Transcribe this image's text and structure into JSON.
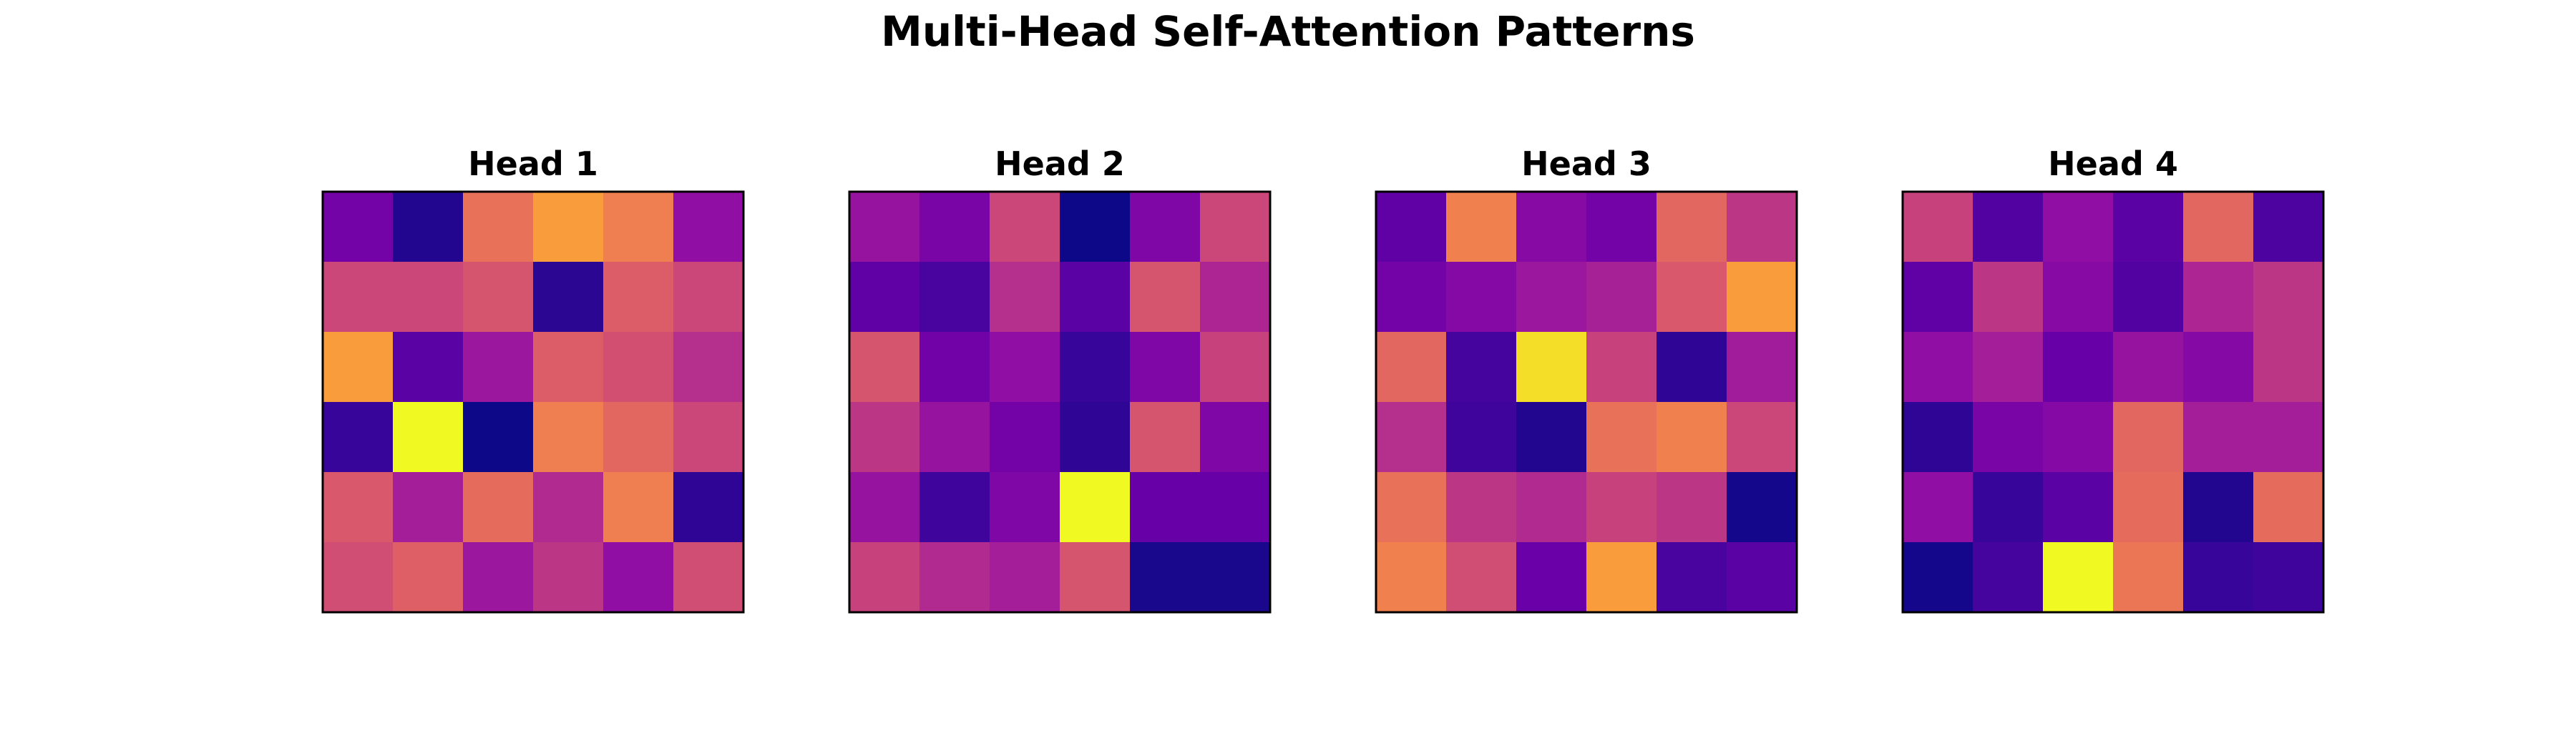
{
  "figure": {
    "title": "Multi-Head Self-Attention Patterns"
  },
  "chart_data": [
    {
      "type": "heatmap",
      "title": "Head 1",
      "colormap": "plasma",
      "value_range": [
        0,
        1
      ],
      "axes_visible": false,
      "values": [
        [
          0.28,
          0.05,
          0.8,
          0.92,
          0.85,
          0.38
        ],
        [
          0.62,
          0.62,
          0.68,
          0.07,
          0.72,
          0.62
        ],
        [
          0.92,
          0.2,
          0.42,
          0.72,
          0.66,
          0.52
        ],
        [
          0.1,
          1.0,
          0.0,
          0.85,
          0.76,
          0.62
        ],
        [
          0.7,
          0.45,
          0.78,
          0.5,
          0.85,
          0.08
        ],
        [
          0.65,
          0.73,
          0.42,
          0.55,
          0.38,
          0.65
        ]
      ]
    },
    {
      "type": "heatmap",
      "title": "Head 2",
      "colormap": "plasma",
      "value_range": [
        0,
        1
      ],
      "axes_visible": false,
      "values": [
        [
          0.4,
          0.3,
          0.62,
          0.0,
          0.32,
          0.62
        ],
        [
          0.22,
          0.15,
          0.52,
          0.2,
          0.68,
          0.48
        ],
        [
          0.68,
          0.27,
          0.38,
          0.1,
          0.32,
          0.6
        ],
        [
          0.55,
          0.4,
          0.28,
          0.08,
          0.68,
          0.32
        ],
        [
          0.4,
          0.12,
          0.32,
          1.0,
          0.24,
          0.24
        ],
        [
          0.6,
          0.5,
          0.45,
          0.68,
          0.03,
          0.03
        ]
      ]
    },
    {
      "type": "heatmap",
      "title": "Head 3",
      "colormap": "plasma",
      "value_range": [
        0,
        1
      ],
      "axes_visible": false,
      "values": [
        [
          0.22,
          0.86,
          0.35,
          0.28,
          0.76,
          0.55
        ],
        [
          0.28,
          0.34,
          0.42,
          0.46,
          0.7,
          0.92
        ],
        [
          0.76,
          0.14,
          0.98,
          0.6,
          0.08,
          0.44
        ],
        [
          0.52,
          0.12,
          0.05,
          0.8,
          0.86,
          0.62
        ],
        [
          0.8,
          0.55,
          0.5,
          0.6,
          0.55,
          0.02
        ],
        [
          0.86,
          0.65,
          0.25,
          0.92,
          0.15,
          0.2
        ]
      ]
    },
    {
      "type": "heatmap",
      "title": "Head 4",
      "colormap": "plasma",
      "value_range": [
        0,
        1
      ],
      "axes_visible": false,
      "values": [
        [
          0.6,
          0.18,
          0.38,
          0.2,
          0.76,
          0.16
        ],
        [
          0.22,
          0.55,
          0.35,
          0.18,
          0.48,
          0.55
        ],
        [
          0.38,
          0.45,
          0.24,
          0.4,
          0.34,
          0.55
        ],
        [
          0.08,
          0.3,
          0.34,
          0.76,
          0.45,
          0.45
        ],
        [
          0.38,
          0.1,
          0.2,
          0.78,
          0.05,
          0.78
        ],
        [
          0.02,
          0.14,
          1.0,
          0.82,
          0.1,
          0.12
        ]
      ]
    }
  ]
}
